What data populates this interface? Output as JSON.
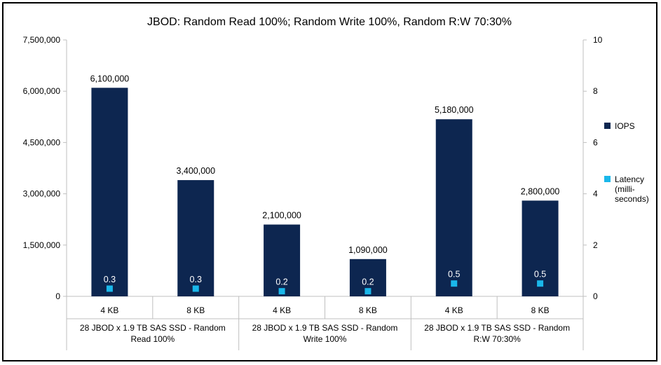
{
  "chart_data": {
    "type": "bar",
    "title": "JBOD: Random Read 100%; Random Write 100%, Random R:W 70:30%",
    "categories": [
      "4 KB",
      "8 KB",
      "4 KB",
      "8 KB",
      "4 KB",
      "8 KB"
    ],
    "groups": [
      {
        "lines": [
          "28 JBOD x 1.9 TB SAS SSD - Random",
          "Read 100%"
        ]
      },
      {
        "lines": [
          "28 JBOD x 1.9 TB SAS SSD - Random",
          "Write 100%"
        ]
      },
      {
        "lines": [
          "28 JBOD x 1.9 TB SAS SSD - Random",
          "R:W 70:30%"
        ]
      }
    ],
    "series": [
      {
        "name": "IOPS",
        "axis": "left",
        "kind": "bar",
        "color": "#0d2650",
        "values": [
          6100000,
          3400000,
          2100000,
          1090000,
          5180000,
          2800000
        ],
        "labels": [
          "6,100,000",
          "3,400,000",
          "2,100,000",
          "1,090,000",
          "5,180,000",
          "2,800,000"
        ]
      },
      {
        "name": "Latency (milli-seconds)",
        "legend_lines": [
          "Latency",
          "(milli-",
          "seconds)"
        ],
        "axis": "right",
        "kind": "marker",
        "color": "#1ab7ea",
        "values": [
          0.3,
          0.3,
          0.2,
          0.2,
          0.5,
          0.5
        ],
        "labels": [
          "0.3",
          "0.3",
          "0.2",
          "0.2",
          "0.5",
          "0.5"
        ]
      }
    ],
    "ylim_left": [
      0,
      7500000
    ],
    "yticks_left": [
      "0",
      "1,500,000",
      "3,000,000",
      "4,500,000",
      "6,000,000",
      "7,500,000"
    ],
    "ylim_right": [
      0,
      10
    ],
    "yticks_right": [
      "0",
      "2",
      "4",
      "6",
      "8",
      "10"
    ],
    "grid": false,
    "legend_position": "right"
  }
}
